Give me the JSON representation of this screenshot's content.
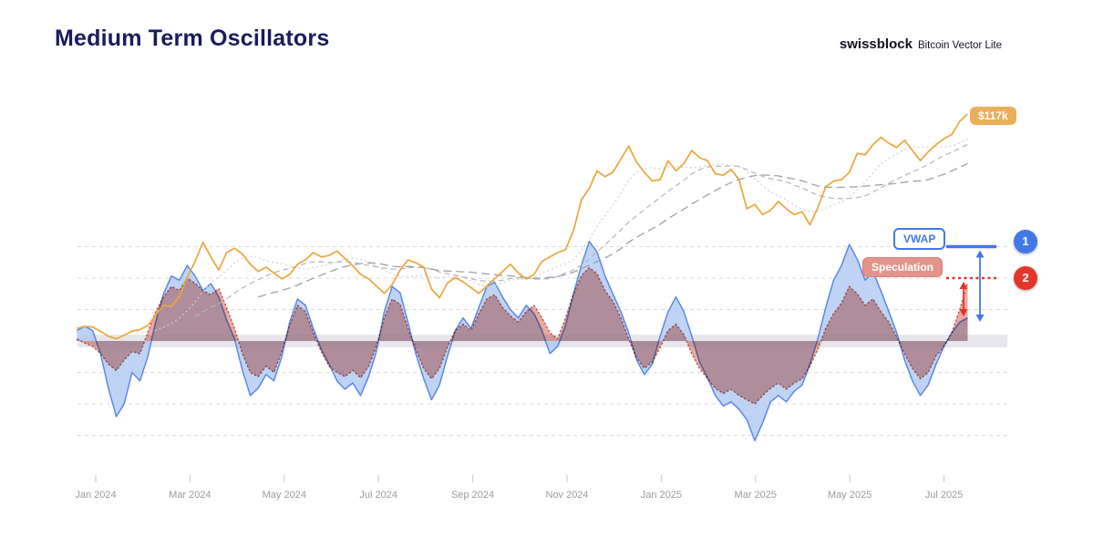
{
  "header": {
    "title": "Medium Term Oscillators",
    "brand": "swissblock",
    "product": "Bitcoin Vector Lite"
  },
  "chart_data": {
    "type": "line",
    "title": "Medium Term Oscillators",
    "x_domain_months": [
      -0.4,
      18.5
    ],
    "x_ticks": [
      {
        "month": 0,
        "label": "Jan 2024"
      },
      {
        "month": 2,
        "label": "Mar 2024"
      },
      {
        "month": 4,
        "label": "May 2024"
      },
      {
        "month": 6,
        "label": "Jul 2024"
      },
      {
        "month": 8,
        "label": "Sep 2024"
      },
      {
        "month": 10,
        "label": "Nov 2024"
      },
      {
        "month": 12,
        "label": "Jan 2025"
      },
      {
        "month": 14,
        "label": "Mar 2025"
      },
      {
        "month": 16,
        "label": "May 2025"
      },
      {
        "month": 18,
        "label": "Jul 2025"
      }
    ],
    "price": {
      "name": "Bitcoin price (thousand USD)",
      "color": "#EAA63C",
      "end_label": "$117k",
      "values": [
        43.5,
        44.2,
        44.0,
        42.5,
        40.8,
        39.9,
        41.2,
        42.6,
        43.1,
        44.5,
        48.0,
        51.5,
        51.0,
        54.5,
        61.0,
        66.5,
        73.0,
        68.0,
        63.5,
        69.5,
        71.0,
        69.0,
        65.5,
        63.0,
        64.5,
        62.5,
        60.5,
        62.0,
        65.5,
        67.0,
        69.5,
        68.0,
        68.5,
        70.0,
        67.5,
        65.0,
        62.0,
        60.5,
        58.0,
        55.5,
        58.5,
        63.5,
        67.0,
        66.0,
        64.5,
        57.0,
        54.0,
        59.0,
        61.0,
        59.5,
        57.5,
        55.5,
        58.0,
        60.5,
        63.0,
        65.5,
        62.5,
        60.5,
        62.0,
        66.5,
        68.0,
        69.5,
        70.5,
        77.0,
        87.5,
        91.5,
        97.5,
        95.5,
        97.0,
        101.5,
        106.0,
        100.5,
        97.0,
        94.0,
        94.5,
        101.0,
        97.5,
        100.0,
        104.5,
        102.0,
        101.0,
        96.5,
        96.0,
        98.0,
        94.5,
        84.5,
        86.0,
        82.5,
        84.0,
        87.0,
        84.5,
        82.5,
        83.5,
        79.0,
        85.0,
        92.0,
        94.0,
        94.5,
        97.0,
        103.5,
        103.0,
        106.5,
        109.0,
        107.0,
        105.5,
        108.0,
        104.5,
        101.0,
        104.0,
        106.5,
        108.5,
        110.0,
        114.5,
        117.0
      ]
    },
    "moving_averages": [
      {
        "window": 8,
        "style": "dotted"
      },
      {
        "window": 16,
        "style": "dashed"
      },
      {
        "window": 24,
        "style": "dashed"
      }
    ],
    "oscillators": [
      {
        "name": "VWAP",
        "color_fill": "#AFC9F2",
        "color_line": "#5B87E5",
        "y_range": [
          -1,
          1
        ],
        "values": [
          0.1,
          0.14,
          0.1,
          -0.12,
          -0.45,
          -0.72,
          -0.6,
          -0.3,
          -0.38,
          -0.15,
          0.18,
          0.45,
          0.62,
          0.58,
          0.72,
          0.62,
          0.48,
          0.55,
          0.42,
          0.2,
          0.02,
          -0.28,
          -0.52,
          -0.45,
          -0.32,
          -0.38,
          -0.15,
          0.18,
          0.4,
          0.34,
          0.12,
          -0.08,
          -0.22,
          -0.38,
          -0.46,
          -0.4,
          -0.52,
          -0.34,
          -0.1,
          0.28,
          0.52,
          0.46,
          0.18,
          -0.12,
          -0.36,
          -0.56,
          -0.42,
          -0.15,
          0.1,
          0.22,
          0.12,
          0.32,
          0.52,
          0.56,
          0.42,
          0.3,
          0.22,
          0.34,
          0.26,
          0.1,
          -0.12,
          -0.05,
          0.15,
          0.45,
          0.72,
          0.95,
          0.85,
          0.62,
          0.45,
          0.28,
          0.08,
          -0.18,
          -0.32,
          -0.22,
          0.05,
          0.28,
          0.42,
          0.28,
          0.05,
          -0.2,
          -0.35,
          -0.52,
          -0.62,
          -0.58,
          -0.65,
          -0.75,
          -0.95,
          -0.78,
          -0.58,
          -0.52,
          -0.58,
          -0.48,
          -0.42,
          -0.22,
          0.02,
          0.32,
          0.58,
          0.72,
          0.92,
          0.78,
          0.58,
          0.66,
          0.48,
          0.28,
          0.08,
          -0.18,
          -0.38,
          -0.52,
          -0.42,
          -0.22,
          -0.05,
          0.08,
          0.18,
          0.22
        ]
      },
      {
        "name": "Speculation",
        "color_fill": "#E59A90",
        "color_line": "#C2574D",
        "y_range": [
          -1,
          1
        ],
        "values": [
          0.02,
          -0.02,
          -0.05,
          -0.12,
          -0.22,
          -0.28,
          -0.18,
          -0.1,
          -0.12,
          0.08,
          0.28,
          0.42,
          0.52,
          0.48,
          0.6,
          0.55,
          0.48,
          0.44,
          0.5,
          0.32,
          0.12,
          -0.12,
          -0.3,
          -0.34,
          -0.24,
          -0.3,
          -0.1,
          0.15,
          0.34,
          0.28,
          0.08,
          -0.1,
          -0.24,
          -0.3,
          -0.34,
          -0.28,
          -0.35,
          -0.24,
          -0.05,
          0.22,
          0.4,
          0.35,
          0.12,
          -0.08,
          -0.26,
          -0.36,
          -0.26,
          -0.06,
          0.1,
          0.16,
          0.1,
          0.26,
          0.4,
          0.44,
          0.32,
          0.24,
          0.18,
          0.28,
          0.34,
          0.22,
          0.08,
          0.02,
          0.22,
          0.45,
          0.62,
          0.7,
          0.64,
          0.48,
          0.38,
          0.22,
          0.02,
          -0.16,
          -0.26,
          -0.2,
          -0.06,
          0.1,
          0.16,
          0.06,
          -0.12,
          -0.26,
          -0.36,
          -0.45,
          -0.5,
          -0.46,
          -0.52,
          -0.56,
          -0.6,
          -0.52,
          -0.45,
          -0.4,
          -0.46,
          -0.4,
          -0.36,
          -0.24,
          -0.08,
          0.12,
          0.26,
          0.36,
          0.52,
          0.45,
          0.34,
          0.4,
          0.28,
          0.18,
          0.04,
          -0.12,
          -0.26,
          -0.36,
          -0.3,
          -0.14,
          -0.05,
          0.08,
          0.3,
          0.56
        ]
      }
    ],
    "baseline_band": [
      -0.06,
      0.06
    ],
    "gridlines": [
      0.9,
      0.6,
      0.3,
      -0.3,
      -0.6,
      -0.9
    ],
    "annotations": {
      "price_badge": "$117k",
      "vwap_label": "VWAP",
      "speculation_label": "Speculation",
      "level1": {
        "value": 0.9,
        "marker": "1",
        "color": "#4277E8"
      },
      "level2": {
        "value": 0.6,
        "marker": "2",
        "color": "#E0362C"
      }
    }
  }
}
